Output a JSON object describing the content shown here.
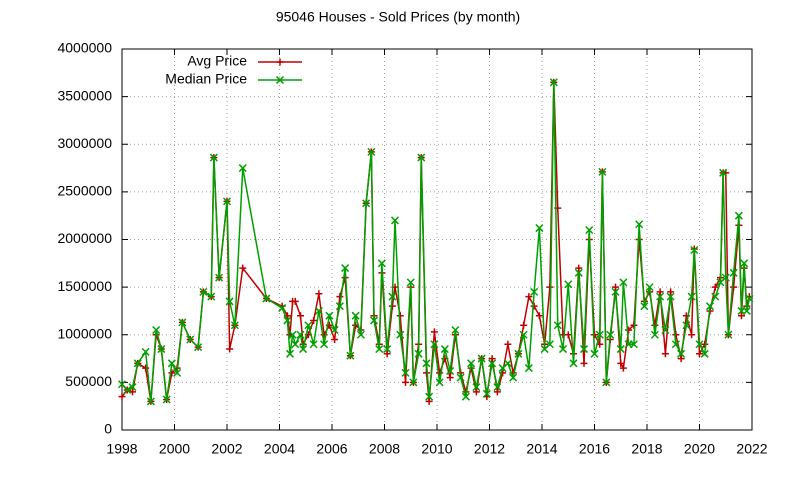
{
  "chart_data": {
    "type": "line",
    "title": "95046 Houses - Sold Prices (by month)",
    "x": [
      1998.0,
      1998.2,
      1998.4,
      1998.6,
      1998.9,
      1999.1,
      1999.3,
      1999.5,
      1999.7,
      1999.9,
      2000.1,
      2000.3,
      2000.6,
      2000.9,
      2001.1,
      2001.4,
      2001.5,
      2001.7,
      2002.0,
      2002.1,
      2002.3,
      2002.6,
      2003.5,
      2004.1,
      2004.3,
      2004.4,
      2004.5,
      2004.6,
      2004.8,
      2004.9,
      2005.1,
      2005.3,
      2005.5,
      2005.7,
      2005.9,
      2006.1,
      2006.3,
      2006.5,
      2006.7,
      2006.9,
      2007.1,
      2007.3,
      2007.5,
      2007.6,
      2007.8,
      2007.9,
      2008.1,
      2008.3,
      2008.4,
      2008.6,
      2008.8,
      2009.0,
      2009.1,
      2009.3,
      2009.4,
      2009.6,
      2009.7,
      2009.9,
      2010.1,
      2010.3,
      2010.5,
      2010.7,
      2010.9,
      2011.1,
      2011.3,
      2011.5,
      2011.7,
      2011.9,
      2012.1,
      2012.3,
      2012.5,
      2012.7,
      2012.9,
      2013.1,
      2013.3,
      2013.5,
      2013.7,
      2013.9,
      2014.1,
      2014.3,
      2014.45,
      2014.6,
      2014.8,
      2015.0,
      2015.2,
      2015.4,
      2015.6,
      2015.8,
      2016.0,
      2016.2,
      2016.3,
      2016.45,
      2016.6,
      2016.8,
      2017.0,
      2017.1,
      2017.3,
      2017.5,
      2017.7,
      2017.9,
      2018.1,
      2018.3,
      2018.5,
      2018.7,
      2018.9,
      2019.1,
      2019.3,
      2019.5,
      2019.7,
      2019.8,
      2020.0,
      2020.2,
      2020.4,
      2020.6,
      2020.8,
      2020.9,
      2021.0,
      2021.1,
      2021.3,
      2021.5,
      2021.6,
      2021.7,
      2021.8,
      2021.9
    ],
    "series": [
      {
        "name": "Avg Price",
        "color": "#c00000",
        "marker": "plus",
        "values": [
          350000,
          420000,
          400000,
          700000,
          650000,
          300000,
          1000000,
          850000,
          320000,
          600000,
          650000,
          1130000,
          950000,
          870000,
          1450000,
          1400000,
          2860000,
          1600000,
          2400000,
          850000,
          1100000,
          1700000,
          1380000,
          1300000,
          1200000,
          1000000,
          1350000,
          1350000,
          1200000,
          900000,
          1000000,
          1150000,
          1430000,
          1000000,
          1100000,
          950000,
          1400000,
          1600000,
          780000,
          1100000,
          1050000,
          2380000,
          2920000,
          1200000,
          900000,
          1650000,
          800000,
          1300000,
          1500000,
          1200000,
          500000,
          1500000,
          500000,
          900000,
          2860000,
          600000,
          300000,
          1030000,
          600000,
          750000,
          550000,
          1000000,
          600000,
          400000,
          650000,
          400000,
          750000,
          350000,
          750000,
          400000,
          600000,
          900000,
          600000,
          800000,
          1100000,
          1400000,
          1300000,
          1200000,
          900000,
          1500000,
          3650000,
          2330000,
          1000000,
          1000000,
          800000,
          1700000,
          700000,
          2000000,
          1000000,
          900000,
          2710000,
          500000,
          950000,
          1500000,
          700000,
          650000,
          1050000,
          1100000,
          2000000,
          1350000,
          1450000,
          1100000,
          1450000,
          800000,
          1450000,
          1000000,
          750000,
          1200000,
          1000000,
          1900000,
          800000,
          900000,
          1250000,
          1500000,
          1600000,
          2700000,
          2700000,
          1000000,
          1500000,
          2150000,
          1200000,
          1700000,
          1300000,
          1400000
        ]
      },
      {
        "name": "Median Price",
        "color": "#00a000",
        "marker": "cross",
        "values": [
          480000,
          420000,
          450000,
          700000,
          820000,
          300000,
          1050000,
          850000,
          320000,
          700000,
          600000,
          1130000,
          950000,
          870000,
          1450000,
          1400000,
          2860000,
          1600000,
          2400000,
          1350000,
          1100000,
          2750000,
          1380000,
          1280000,
          1150000,
          800000,
          1000000,
          900000,
          1000000,
          850000,
          1100000,
          900000,
          1250000,
          900000,
          1200000,
          1050000,
          1300000,
          1700000,
          780000,
          1200000,
          1000000,
          2380000,
          2920000,
          1150000,
          850000,
          1750000,
          850000,
          1400000,
          2200000,
          1000000,
          600000,
          1550000,
          500000,
          800000,
          2860000,
          700000,
          350000,
          900000,
          500000,
          850000,
          620000,
          1050000,
          550000,
          350000,
          700000,
          450000,
          750000,
          380000,
          700000,
          450000,
          650000,
          700000,
          550000,
          800000,
          1000000,
          650000,
          1450000,
          2120000,
          850000,
          900000,
          3650000,
          1100000,
          850000,
          1530000,
          700000,
          1650000,
          850000,
          2100000,
          800000,
          1000000,
          2710000,
          500000,
          1000000,
          1450000,
          850000,
          1550000,
          900000,
          900000,
          2160000,
          1300000,
          1500000,
          1000000,
          1400000,
          1050000,
          1400000,
          900000,
          800000,
          1100000,
          1400000,
          1890000,
          900000,
          800000,
          1300000,
          1400000,
          1550000,
          2700000,
          1600000,
          1000000,
          1650000,
          2250000,
          1250000,
          1750000,
          1250000,
          1380000
        ]
      }
    ],
    "xlim": [
      1998,
      2022
    ],
    "xticks": [
      1998,
      2000,
      2002,
      2004,
      2006,
      2008,
      2010,
      2012,
      2014,
      2016,
      2018,
      2020,
      2022
    ],
    "ylim": [
      0,
      4000000
    ],
    "yticks": [
      0,
      500000,
      1000000,
      1500000,
      2000000,
      2500000,
      3000000,
      3500000,
      4000000
    ],
    "grid": true,
    "legend": "top-left"
  }
}
